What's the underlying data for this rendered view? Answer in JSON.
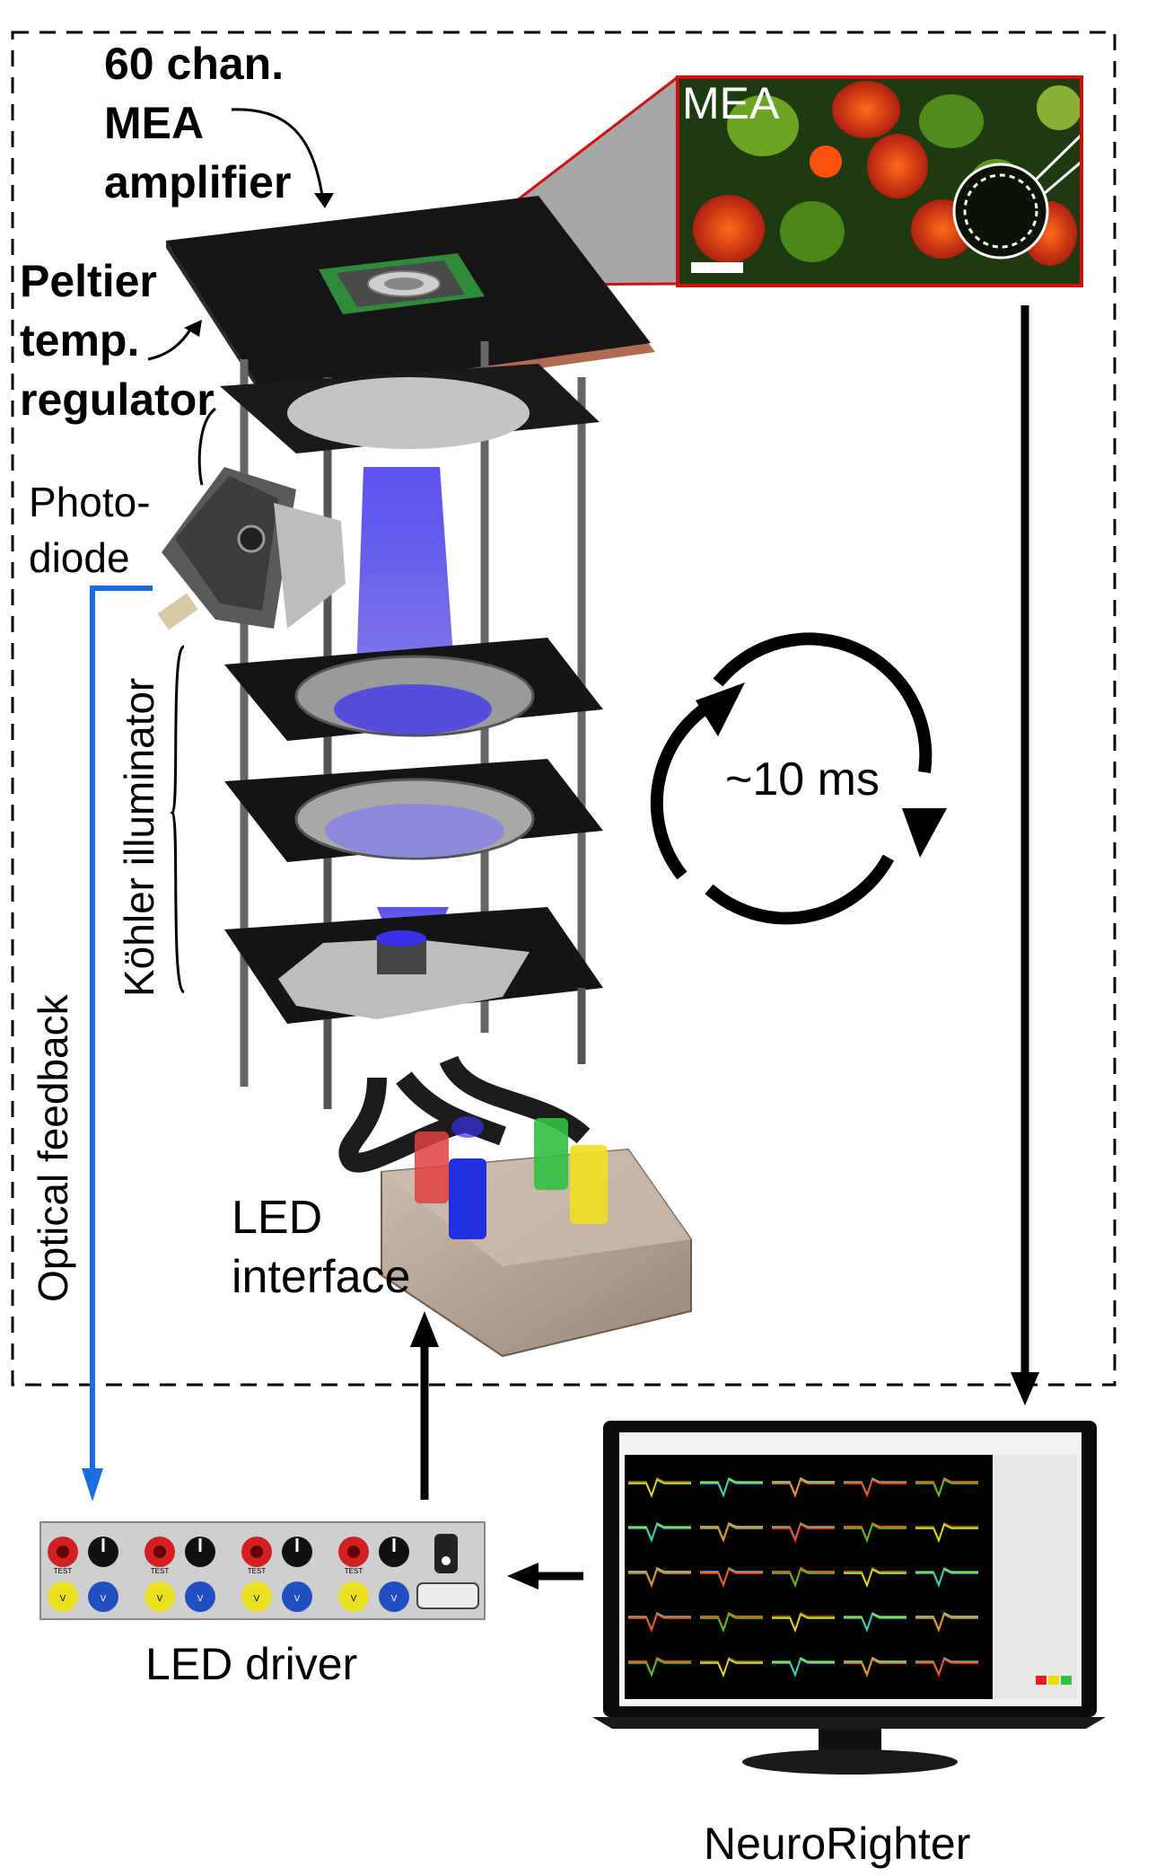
{
  "labels": {
    "amp_line1": "60 chan.",
    "amp_line2": "MEA",
    "amp_line3": "amplifier",
    "peltier_line1": "Peltier",
    "peltier_line2": "temp.",
    "peltier_line3": "regulator",
    "photo_line1": "Photo-",
    "photo_line2": "diode",
    "kohler": "Köhler illuminator",
    "optical": "Optical feedback",
    "led_if_line1": "LED",
    "led_if_line2": "interface",
    "loop_time": "~10 ms",
    "led_driver": "LED driver",
    "neurorighter": "NeuroRighter",
    "inset": "MEA"
  },
  "driver_labels": {
    "test": "TEST",
    "vin": "V",
    "vled": "V"
  },
  "colors": {
    "feedback_arrow": "#1a6fe0",
    "inset_border": "#d01010",
    "led_red": "#e04040",
    "led_blue": "#2030e0",
    "led_green": "#30c040",
    "led_yellow": "#f0e020",
    "light_beam": "#3a2ee8"
  }
}
